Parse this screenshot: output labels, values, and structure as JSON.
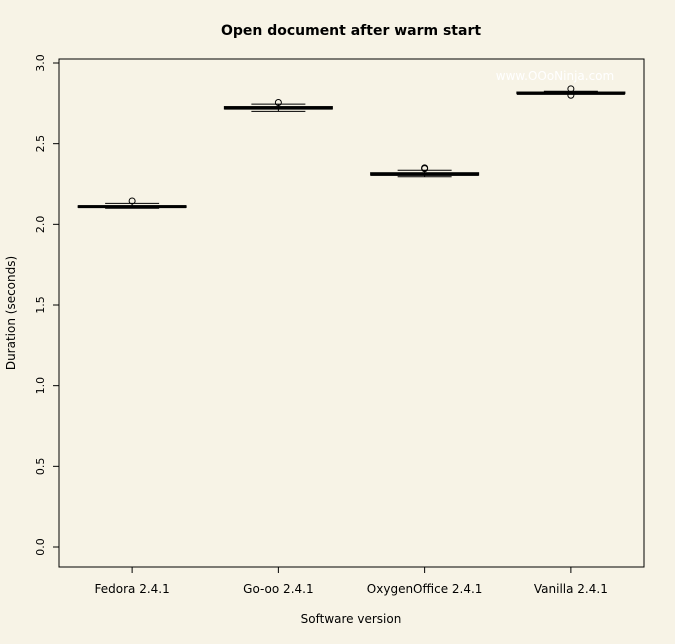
{
  "colors": {
    "background": "#f7f3e6",
    "ink": "#000000",
    "watermark": "#ffffff"
  },
  "watermark": "www.OOoNinja.com",
  "chart_data": {
    "type": "boxplot",
    "title": "Open document after warm start",
    "xlabel": "Software version",
    "ylabel": "Duration (seconds)",
    "ylim": [
      0,
      3
    ],
    "yticks": [
      "0.0",
      "0.5",
      "1.0",
      "1.5",
      "2.0",
      "2.5",
      "3.0"
    ],
    "categories": [
      "Fedora 2.4.1",
      "Go-oo 2.4.1",
      "OxygenOffice 2.4.1",
      "Vanilla 2.4.1"
    ],
    "grid": false,
    "legend": "none",
    "boxes": [
      {
        "name": "Fedora 2.4.1",
        "whisker_low": 2.1,
        "q1": 2.105,
        "median": 2.11,
        "q3": 2.115,
        "whisker_high": 2.13,
        "outliers": [
          2.145
        ]
      },
      {
        "name": "Go-oo 2.4.1",
        "whisker_low": 2.7,
        "q1": 2.715,
        "median": 2.72,
        "q3": 2.73,
        "whisker_high": 2.745,
        "outliers": [
          2.755
        ]
      },
      {
        "name": "OxygenOffice 2.4.1",
        "whisker_low": 2.295,
        "q1": 2.305,
        "median": 2.31,
        "q3": 2.32,
        "whisker_high": 2.335,
        "outliers": [
          2.345,
          2.35
        ]
      },
      {
        "name": "Vanilla 2.4.1",
        "whisker_low": 2.81,
        "q1": 2.81,
        "median": 2.812,
        "q3": 2.82,
        "whisker_high": 2.825,
        "outliers": [
          2.8,
          2.84
        ]
      }
    ]
  }
}
